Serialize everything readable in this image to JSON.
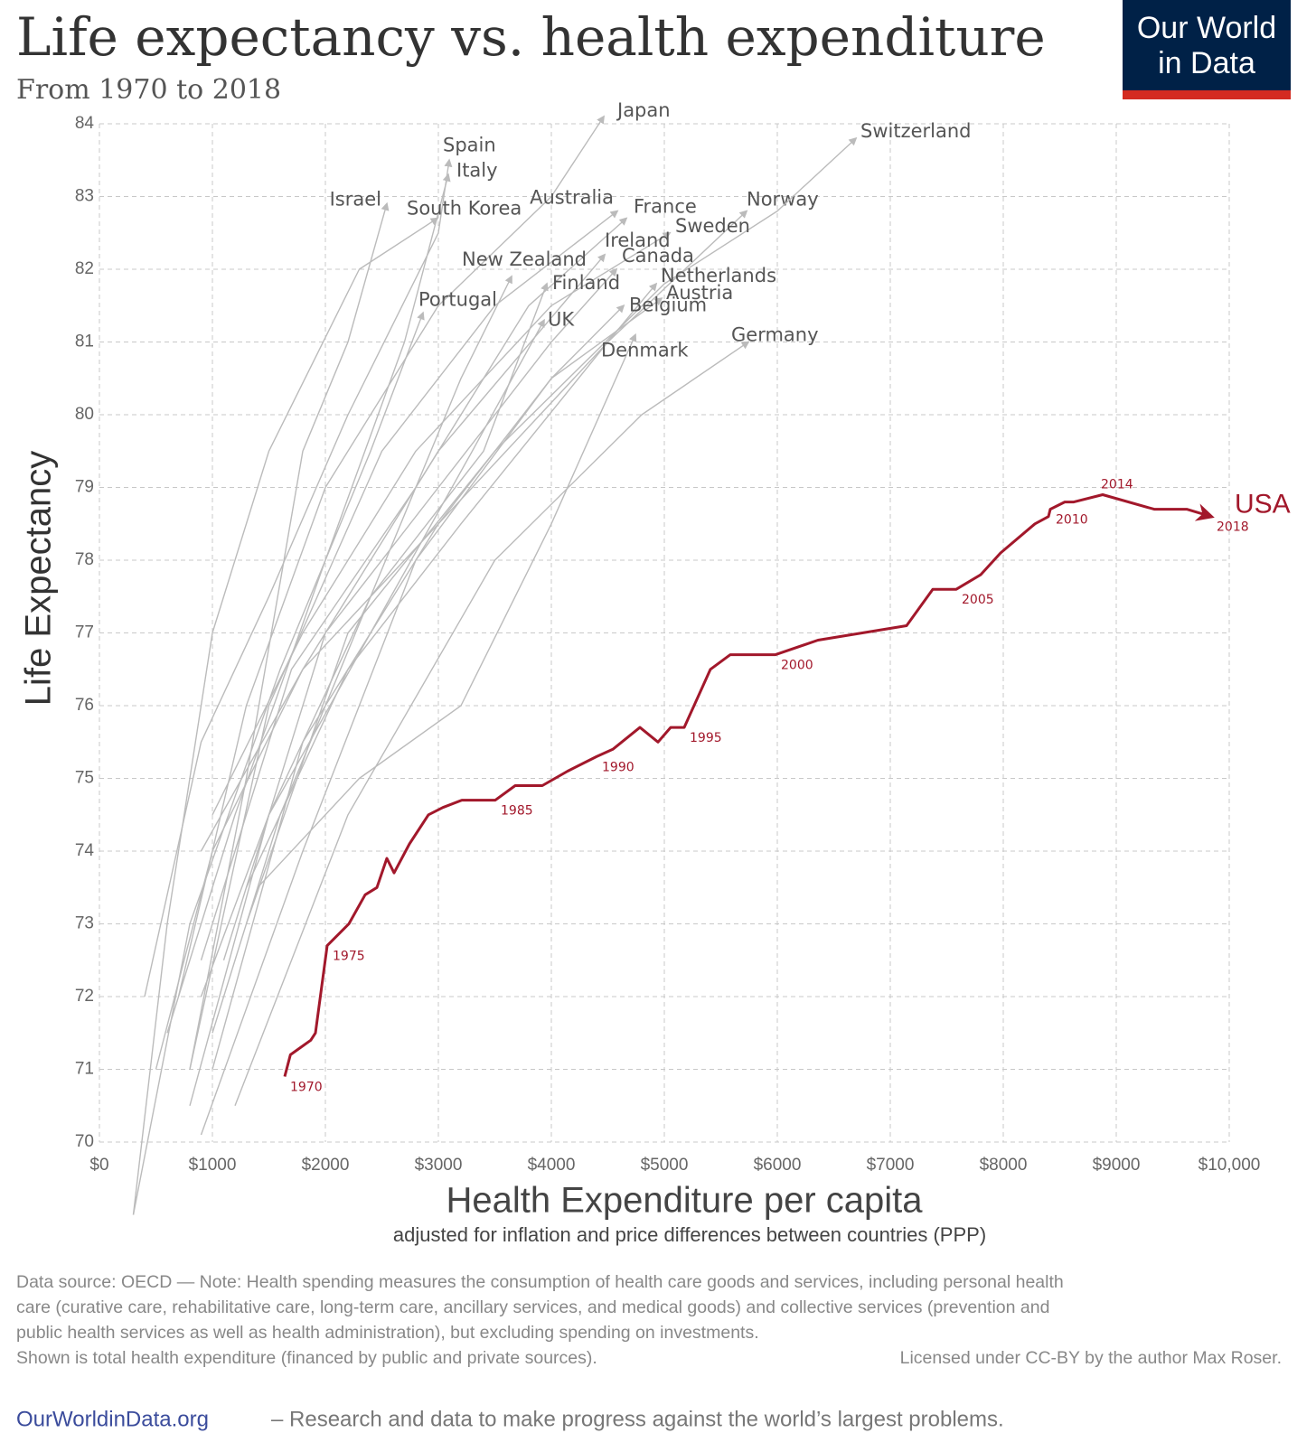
{
  "chart_data": {
    "type": "line",
    "title": "Life expectancy vs. health expenditure",
    "subtitle": "From 1970 to 2018",
    "y_axis_label": "Life Expectancy",
    "x_axis_label": "Health Expenditure per capita",
    "x_axis_sublabel": "adjusted for inflation and price differences between countries (PPP)",
    "xlim": [
      0,
      10000
    ],
    "xticks": [
      {
        "value": 0,
        "label": "$0"
      },
      {
        "value": 1000,
        "label": "$1000"
      },
      {
        "value": 2000,
        "label": "$2000"
      },
      {
        "value": 3000,
        "label": "$3000"
      },
      {
        "value": 4000,
        "label": "$4000"
      },
      {
        "value": 5000,
        "label": "$5000"
      },
      {
        "value": 6000,
        "label": "$6000"
      },
      {
        "value": 7000,
        "label": "$7000"
      },
      {
        "value": 8000,
        "label": "$8000"
      },
      {
        "value": 9000,
        "label": "$9000"
      },
      {
        "value": 10000,
        "label": "$10,000"
      }
    ],
    "ylim": [
      70,
      84
    ],
    "yticks": [
      70,
      71,
      72,
      73,
      74,
      75,
      76,
      77,
      78,
      79,
      80,
      81,
      82,
      83,
      84
    ],
    "grid": true,
    "series": [
      {
        "name": "Japan",
        "color": "#bbbbbb",
        "x": [
          700,
          1300,
          2000,
          3000,
          4000,
          4464
        ],
        "values": [
          72.0,
          76.0,
          79.0,
          81.5,
          83.0,
          84.1
        ]
      },
      {
        "name": "Spain",
        "color": "#bbbbbb",
        "x": [
          400,
          900,
          1500,
          2200,
          3000,
          3096
        ],
        "values": [
          72.0,
          75.5,
          77.5,
          80.0,
          82.5,
          83.5
        ]
      },
      {
        "name": "Italy",
        "color": "#bbbbbb",
        "x": [
          600,
          1200,
          2000,
          2700,
          3088
        ],
        "values": [
          71.5,
          74.5,
          78.0,
          81.0,
          83.3
        ]
      },
      {
        "name": "Israel",
        "color": "#bbbbbb",
        "x": [
          800,
          1300,
          1800,
          2200,
          2544
        ],
        "values": [
          71.0,
          75.0,
          79.5,
          81.0,
          82.9
        ]
      },
      {
        "name": "South Korea",
        "color": "#bbbbbb",
        "x": [
          300,
          600,
          1000,
          1500,
          2300,
          2992
        ],
        "values": [
          69.0,
          73.0,
          77.0,
          79.5,
          82.0,
          82.7
        ]
      },
      {
        "name": "Australia",
        "color": "#bbbbbb",
        "x": [
          800,
          1500,
          2500,
          3500,
          4584
        ],
        "values": [
          71.0,
          76.0,
          79.5,
          81.5,
          82.8
        ]
      },
      {
        "name": "France",
        "color": "#bbbbbb",
        "x": [
          900,
          1700,
          2800,
          3800,
          4664
        ],
        "values": [
          72.5,
          76.5,
          79.0,
          81.5,
          82.7
        ]
      },
      {
        "name": "Norway",
        "color": "#bbbbbb",
        "x": [
          900,
          1800,
          3000,
          4500,
          5728
        ],
        "values": [
          74.0,
          76.5,
          78.5,
          81.0,
          82.8
        ]
      },
      {
        "name": "Switzerland",
        "color": "#bbbbbb",
        "x": [
          1300,
          2200,
          3500,
          5000,
          6000,
          6696
        ],
        "values": [
          73.0,
          77.0,
          79.5,
          81.8,
          82.8,
          83.8
        ]
      },
      {
        "name": "Sweden",
        "color": "#bbbbbb",
        "x": [
          1000,
          1800,
          2800,
          4000,
          5048
        ],
        "values": [
          74.5,
          77.0,
          79.5,
          81.5,
          82.5
        ]
      },
      {
        "name": "Ireland",
        "color": "#bbbbbb",
        "x": [
          500,
          1000,
          1800,
          3000,
          4472
        ],
        "values": [
          71.0,
          74.0,
          76.5,
          79.5,
          82.2
        ]
      },
      {
        "name": "Canada",
        "color": "#bbbbbb",
        "x": [
          1100,
          2000,
          3000,
          4000,
          4576
        ],
        "values": [
          72.5,
          77.0,
          79.0,
          81.0,
          82.0
        ]
      },
      {
        "name": "New Zealand",
        "color": "#bbbbbb",
        "x": [
          1000,
          1600,
          2400,
          3200,
          3648
        ],
        "values": [
          71.5,
          74.5,
          77.5,
          80.5,
          81.9
        ]
      },
      {
        "name": "Netherlands",
        "color": "#bbbbbb",
        "x": [
          1300,
          2200,
          3200,
          4500,
          4928
        ],
        "values": [
          73.5,
          76.5,
          78.5,
          81.0,
          81.8
        ]
      },
      {
        "name": "Finland",
        "color": "#bbbbbb",
        "x": [
          800,
          1500,
          2400,
          3400,
          3960
        ],
        "values": [
          70.5,
          74.5,
          77.5,
          79.5,
          81.8
        ]
      },
      {
        "name": "Austria",
        "color": "#bbbbbb",
        "x": [
          900,
          1800,
          2800,
          4000,
          4976
        ],
        "values": [
          70.1,
          74.0,
          78.0,
          80.5,
          81.6
        ]
      },
      {
        "name": "Portugal",
        "color": "#bbbbbb",
        "x": [
          300,
          800,
          1600,
          2400,
          2864
        ],
        "values": [
          69.0,
          73.0,
          76.5,
          79.5,
          81.4
        ]
      },
      {
        "name": "Belgium",
        "color": "#bbbbbb",
        "x": [
          1000,
          1800,
          3000,
          4000,
          4640
        ],
        "values": [
          71.0,
          75.5,
          78.5,
          80.5,
          81.5
        ]
      },
      {
        "name": "UK",
        "color": "#bbbbbb",
        "x": [
          900,
          1500,
          2400,
          3300,
          3936
        ],
        "values": [
          72.0,
          74.5,
          77.0,
          79.5,
          81.3
        ]
      },
      {
        "name": "Germany",
        "color": "#bbbbbb",
        "x": [
          1200,
          2200,
          3500,
          4800,
          5744
        ],
        "values": [
          70.5,
          74.5,
          78.0,
          80.0,
          81.0
        ]
      },
      {
        "name": "Denmark",
        "color": "#bbbbbb",
        "x": [
          1400,
          2300,
          3200,
          4000,
          4744
        ],
        "values": [
          73.5,
          75.0,
          76.0,
          78.5,
          81.1
        ]
      },
      {
        "name": "USA",
        "color": "#a2182b",
        "x": [
          1640,
          1690,
          1780,
          1870,
          1912,
          2016,
          2208,
          2352,
          2456,
          2544,
          2608,
          2744,
          2912,
          3040,
          3208,
          3504,
          3680,
          3920,
          4144,
          4400,
          4544,
          4784,
          4944,
          5056,
          5176,
          5408,
          5584,
          5984,
          6360,
          7144,
          7376,
          7584,
          7800,
          7976,
          8280,
          8400,
          8416,
          8544,
          8624,
          8880,
          9336,
          9624,
          9840
        ],
        "values": [
          70.9,
          71.2,
          71.3,
          71.4,
          71.5,
          72.7,
          73.0,
          73.4,
          73.5,
          73.9,
          73.7,
          74.1,
          74.5,
          74.6,
          74.7,
          74.7,
          74.9,
          74.9,
          75.1,
          75.3,
          75.4,
          75.7,
          75.5,
          75.7,
          75.7,
          76.5,
          76.7,
          76.7,
          76.9,
          77.1,
          77.6,
          77.6,
          77.8,
          78.1,
          78.5,
          78.6,
          78.7,
          78.8,
          78.8,
          78.9,
          78.7,
          78.7,
          78.6
        ],
        "labels": [
          "1970",
          null,
          null,
          null,
          null,
          "1975",
          null,
          null,
          null,
          null,
          null,
          null,
          null,
          null,
          null,
          "1985",
          null,
          null,
          null,
          "1990",
          null,
          null,
          null,
          null,
          "1995",
          null,
          null,
          "2000",
          null,
          null,
          null,
          "2005",
          null,
          null,
          null,
          null,
          "2010",
          null,
          null,
          "2014",
          null,
          null,
          "2018"
        ]
      }
    ]
  },
  "logo": [
    "Our World",
    "in Data"
  ],
  "footer": {
    "note_lines": [
      "Data source: OECD — Note: Health spending measures the consumption of health care goods and services, including personal health",
      "care (curative care, rehabilitative care, long-term care, ancillary services, and medical goods) and collective services (prevention and",
      "public health services as well as health administration), but excluding spending on investments.",
      "Shown is total health expenditure (financed by public and private sources)."
    ],
    "license": "Licensed under CC-BY by the author Max Roser.",
    "site": "OurWorldinData.org",
    "tagline": "– Research and data to make progress against the world’s largest problems."
  }
}
